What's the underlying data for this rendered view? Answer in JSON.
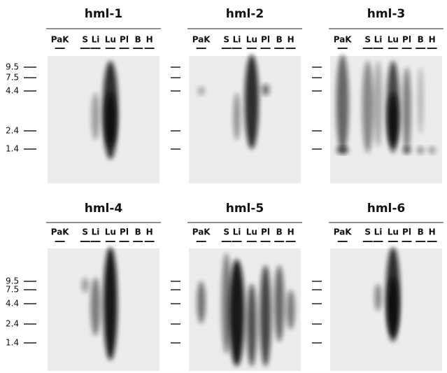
{
  "rows": [
    {
      "markers": [
        "9.5",
        "7.5",
        "4.4",
        "2.4",
        "1.4"
      ],
      "panels": [
        {
          "title": "hml-1",
          "lanes": [
            "PaK",
            "S",
            "Li",
            "Lu",
            "Pl",
            "B",
            "H"
          ]
        },
        {
          "title": "hml-2",
          "lanes": [
            "PaK",
            "S",
            "Li",
            "Lu",
            "Pl",
            "B",
            "H"
          ]
        },
        {
          "title": "hml-3",
          "lanes": [
            "PaK",
            "S",
            "Li",
            "Lu",
            "Pl",
            "B",
            "H"
          ]
        }
      ]
    },
    {
      "markers": [
        "9.5",
        "7.5",
        "4.4",
        "2.4",
        "1.4"
      ],
      "panels": [
        {
          "title": "hml-4",
          "lanes": [
            "PaK",
            "S",
            "Li",
            "Lu",
            "Pl",
            "B",
            "H"
          ]
        },
        {
          "title": "hml-5",
          "lanes": [
            "PaK",
            "S",
            "Li",
            "Lu",
            "Pl",
            "B",
            "H"
          ]
        },
        {
          "title": "hml-6",
          "lanes": [
            "PaK",
            "S",
            "Li",
            "Lu",
            "Pl",
            "B",
            "H"
          ]
        }
      ]
    }
  ]
}
